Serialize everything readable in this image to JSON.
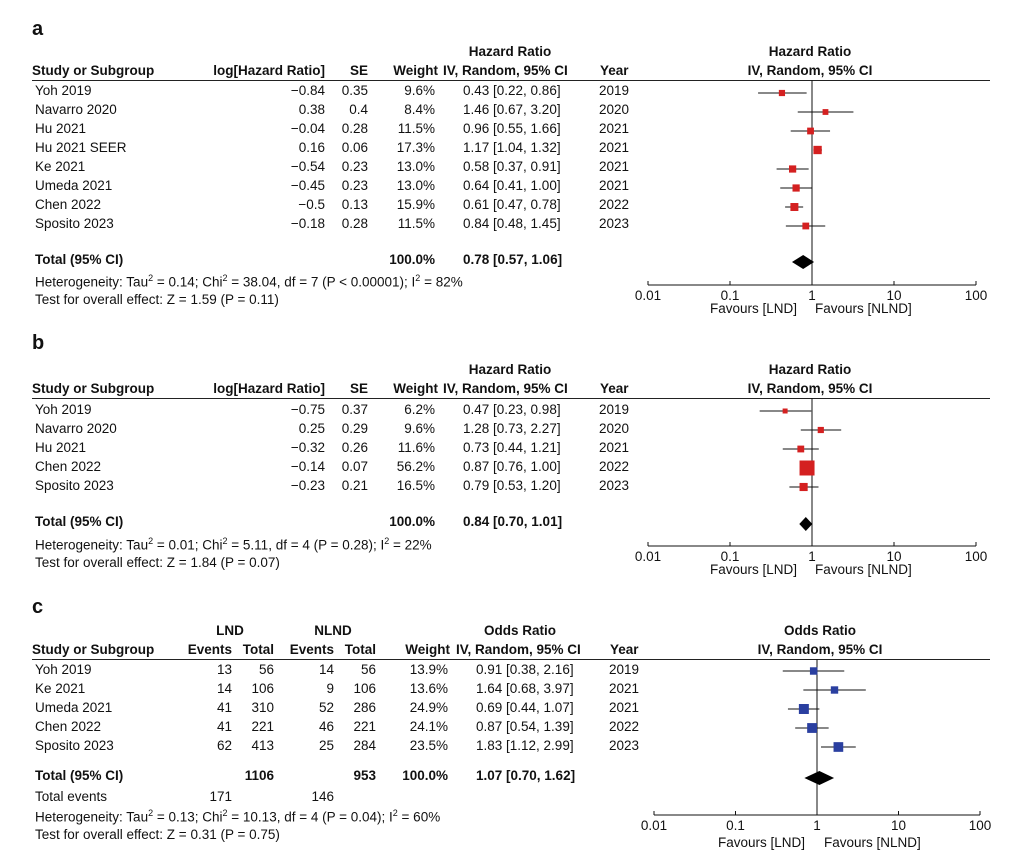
{
  "chart_data": [
    {
      "type": "forest",
      "panel_label": "a",
      "headers": {
        "study": "Study or Subgroup",
        "loghr": "log[Hazard Ratio]",
        "se": "SE",
        "weight": "Weight",
        "effect_top": "Hazard Ratio",
        "effect_sub": "IV, Random, 95% CI",
        "year": "Year",
        "plot_top": "Hazard Ratio",
        "plot_sub": "IV, Random, 95% CI"
      },
      "rows": [
        {
          "study": "Yoh 2019",
          "loghr": "−0.84",
          "se": "0.35",
          "weight": "9.6%",
          "ci": "0.43 [0.22, 0.86]",
          "year": "2019",
          "est": 0.43,
          "lo": 0.22,
          "hi": 0.86,
          "w": 9.6
        },
        {
          "study": "Navarro 2020",
          "loghr": "0.38",
          "se": "0.4",
          "weight": "8.4%",
          "ci": "1.46 [0.67, 3.20]",
          "year": "2020",
          "est": 1.46,
          "lo": 0.67,
          "hi": 3.2,
          "w": 8.4
        },
        {
          "study": "Hu 2021",
          "loghr": "−0.04",
          "se": "0.28",
          "weight": "11.5%",
          "ci": "0.96 [0.55, 1.66]",
          "year": "2021",
          "est": 0.96,
          "lo": 0.55,
          "hi": 1.66,
          "w": 11.5
        },
        {
          "study": "Hu 2021 SEER",
          "loghr": "0.16",
          "se": "0.06",
          "weight": "17.3%",
          "ci": "1.17 [1.04, 1.32]",
          "year": "2021",
          "est": 1.17,
          "lo": 1.04,
          "hi": 1.32,
          "w": 17.3
        },
        {
          "study": "Ke 2021",
          "loghr": "−0.54",
          "se": "0.23",
          "weight": "13.0%",
          "ci": "0.58 [0.37, 0.91]",
          "year": "2021",
          "est": 0.58,
          "lo": 0.37,
          "hi": 0.91,
          "w": 13.0
        },
        {
          "study": "Umeda 2021",
          "loghr": "−0.45",
          "se": "0.23",
          "weight": "13.0%",
          "ci": "0.64 [0.41, 1.00]",
          "year": "2021",
          "est": 0.64,
          "lo": 0.41,
          "hi": 1.0,
          "w": 13.0
        },
        {
          "study": "Chen 2022",
          "loghr": "−0.5",
          "se": "0.13",
          "weight": "15.9%",
          "ci": "0.61 [0.47, 0.78]",
          "year": "2022",
          "est": 0.61,
          "lo": 0.47,
          "hi": 0.78,
          "w": 15.9
        },
        {
          "study": "Sposito 2023",
          "loghr": "−0.18",
          "se": "0.28",
          "weight": "11.5%",
          "ci": "0.84 [0.48, 1.45]",
          "year": "2023",
          "est": 0.84,
          "lo": 0.48,
          "hi": 1.45,
          "w": 11.5
        }
      ],
      "total": {
        "label": "Total (95% CI)",
        "weight": "100.0%",
        "ci": "0.78 [0.57, 1.06]",
        "est": 0.78,
        "lo": 0.57,
        "hi": 1.06
      },
      "heterogeneity": {
        "prefix": "Heterogeneity: Tau",
        "mid1": " = 0.14; Chi",
        "mid2": " = 38.04, df = 7 (P < 0.00001); I",
        "end": " = 82%"
      },
      "overall_effect": "Test for overall effect: Z = 1.59 (P = 0.11)",
      "axis": {
        "ticks": [
          0.01,
          0.1,
          1,
          10,
          100
        ],
        "tick_labels": [
          "0.01",
          "0.1",
          "1",
          "10",
          "100"
        ],
        "left_label": "Favours [LND]",
        "right_label": "Favours [NLND]",
        "scale": "log"
      },
      "marker_color": "#d42020"
    },
    {
      "type": "forest",
      "panel_label": "b",
      "headers": {
        "study": "Study or Subgroup",
        "loghr": "log[Hazard Ratio]",
        "se": "SE",
        "weight": "Weight",
        "effect_top": "Hazard Ratio",
        "effect_sub": "IV, Random, 95% CI",
        "year": "Year",
        "plot_top": "Hazard Ratio",
        "plot_sub": "IV, Random, 95% CI"
      },
      "rows": [
        {
          "study": "Yoh 2019",
          "loghr": "−0.75",
          "se": "0.37",
          "weight": "6.2%",
          "ci": "0.47 [0.23, 0.98]",
          "year": "2019",
          "est": 0.47,
          "lo": 0.23,
          "hi": 0.98,
          "w": 6.2
        },
        {
          "study": "Navarro 2020",
          "loghr": "0.25",
          "se": "0.29",
          "weight": "9.6%",
          "ci": "1.28 [0.73, 2.27]",
          "year": "2020",
          "est": 1.28,
          "lo": 0.73,
          "hi": 2.27,
          "w": 9.6
        },
        {
          "study": "Hu 2021",
          "loghr": "−0.32",
          "se": "0.26",
          "weight": "11.6%",
          "ci": "0.73 [0.44, 1.21]",
          "year": "2021",
          "est": 0.73,
          "lo": 0.44,
          "hi": 1.21,
          "w": 11.6
        },
        {
          "study": "Chen 2022",
          "loghr": "−0.14",
          "se": "0.07",
          "weight": "56.2%",
          "ci": "0.87 [0.76, 1.00]",
          "year": "2022",
          "est": 0.87,
          "lo": 0.76,
          "hi": 1.0,
          "w": 56.2
        },
        {
          "study": "Sposito 2023",
          "loghr": "−0.23",
          "se": "0.21",
          "weight": "16.5%",
          "ci": "0.79 [0.53, 1.20]",
          "year": "2023",
          "est": 0.79,
          "lo": 0.53,
          "hi": 1.2,
          "w": 16.5
        }
      ],
      "total": {
        "label": "Total (95% CI)",
        "weight": "100.0%",
        "ci": "0.84 [0.70, 1.01]",
        "est": 0.84,
        "lo": 0.7,
        "hi": 1.01
      },
      "heterogeneity": {
        "prefix": "Heterogeneity: Tau",
        "mid1": " = 0.01; Chi",
        "mid2": " = 5.11, df = 4 (P = 0.28); I",
        "end": " = 22%"
      },
      "overall_effect": "Test for overall effect: Z = 1.84 (P = 0.07)",
      "axis": {
        "ticks": [
          0.01,
          0.1,
          1,
          10,
          100
        ],
        "tick_labels": [
          "0.01",
          "0.1",
          "1",
          "10",
          "100"
        ],
        "left_label": "Favours [LND]",
        "right_label": "Favours [NLND]",
        "scale": "log"
      },
      "marker_color": "#d42020"
    },
    {
      "type": "forest",
      "panel_label": "c",
      "headers": {
        "lnd": "LND",
        "nlnd": "NLND",
        "study": "Study or Subgroup",
        "events": "Events",
        "total": "Total",
        "weight": "Weight",
        "effect_top": "Odds Ratio",
        "effect_sub": "IV, Random, 95% CI",
        "year": "Year",
        "plot_top": "Odds Ratio",
        "plot_sub": "IV, Random, 95% CI"
      },
      "rows": [
        {
          "study": "Yoh 2019",
          "e1": "13",
          "n1": "56",
          "e2": "14",
          "n2": "56",
          "weight": "13.9%",
          "ci": "0.91 [0.38, 2.16]",
          "year": "2019",
          "est": 0.91,
          "lo": 0.38,
          "hi": 2.16,
          "w": 13.9
        },
        {
          "study": "Ke 2021",
          "e1": "14",
          "n1": "106",
          "e2": "9",
          "n2": "106",
          "weight": "13.6%",
          "ci": "1.64 [0.68, 3.97]",
          "year": "2021",
          "est": 1.64,
          "lo": 0.68,
          "hi": 3.97,
          "w": 13.6
        },
        {
          "study": "Umeda 2021",
          "e1": "41",
          "n1": "310",
          "e2": "52",
          "n2": "286",
          "weight": "24.9%",
          "ci": "0.69 [0.44, 1.07]",
          "year": "2021",
          "est": 0.69,
          "lo": 0.44,
          "hi": 1.07,
          "w": 24.9
        },
        {
          "study": "Chen 2022",
          "e1": "41",
          "n1": "221",
          "e2": "46",
          "n2": "221",
          "weight": "24.1%",
          "ci": "0.87 [0.54, 1.39]",
          "year": "2022",
          "est": 0.87,
          "lo": 0.54,
          "hi": 1.39,
          "w": 24.1
        },
        {
          "study": "Sposito 2023",
          "e1": "62",
          "n1": "413",
          "e2": "25",
          "n2": "284",
          "weight": "23.5%",
          "ci": "1.83 [1.12, 2.99]",
          "year": "2023",
          "est": 1.83,
          "lo": 1.12,
          "hi": 2.99,
          "w": 23.5
        }
      ],
      "total": {
        "label": "Total (95% CI)",
        "n1": "1106",
        "n2": "953",
        "weight": "100.0%",
        "ci": "1.07 [0.70, 1.62]",
        "est": 1.07,
        "lo": 0.7,
        "hi": 1.62
      },
      "total_events": {
        "label": "Total events",
        "e1": "171",
        "e2": "146"
      },
      "heterogeneity": {
        "prefix": "Heterogeneity: Tau",
        "mid1": " = 0.13; Chi",
        "mid2": " = 10.13, df = 4 (P = 0.04); I",
        "end": " = 60%"
      },
      "overall_effect": "Test for overall effect: Z = 0.31 (P = 0.75)",
      "axis": {
        "ticks": [
          0.01,
          0.1,
          1,
          10,
          100
        ],
        "tick_labels": [
          "0.01",
          "0.1",
          "1",
          "10",
          "100"
        ],
        "left_label": "Favours [LND]",
        "right_label": "Favours [NLND]",
        "scale": "log"
      },
      "marker_color": "#2a3fa0"
    }
  ]
}
